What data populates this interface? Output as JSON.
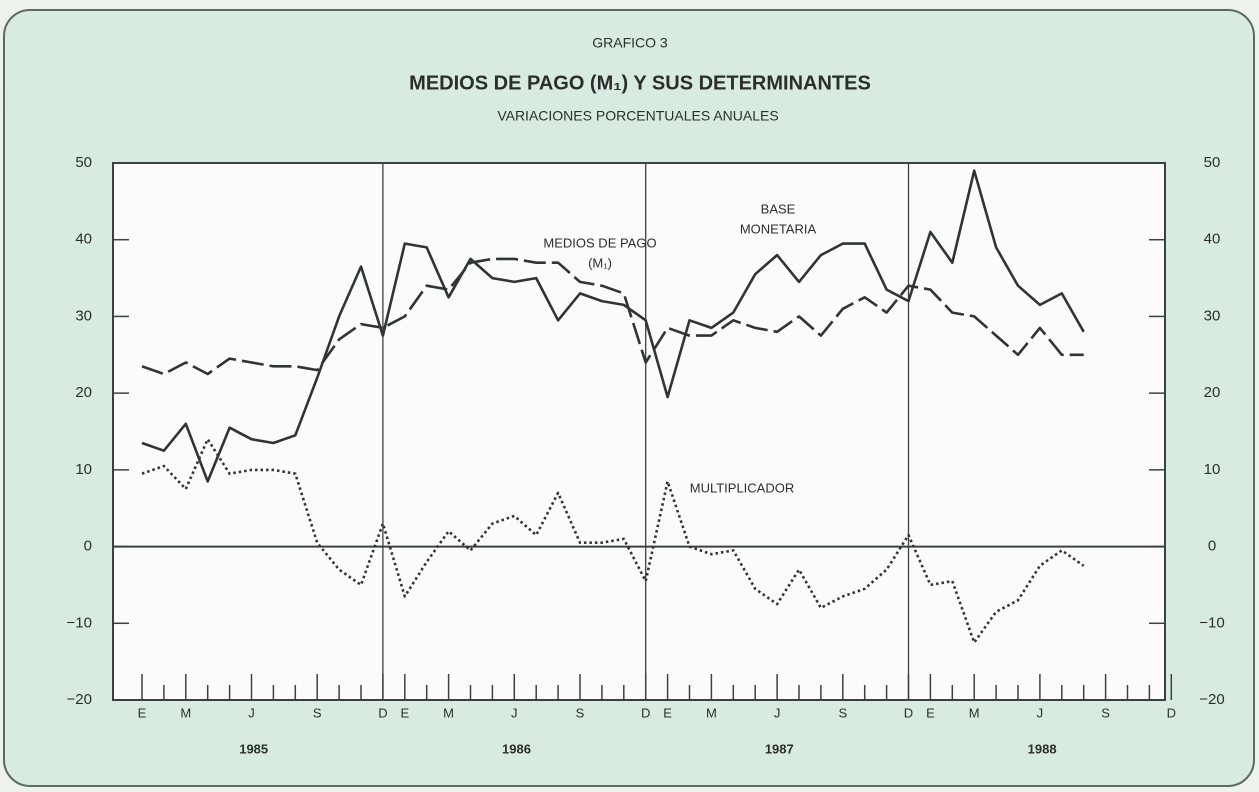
{
  "chart_data": {
    "type": "line",
    "supertitle": "GRAFICO 3",
    "title": "MEDIOS DE PAGO (M₁) Y SUS DETERMINANTES",
    "subtitle": "VARIACIONES PORCENTUALES ANUALES",
    "categories": [
      "E",
      null,
      "M",
      null,
      null,
      "J",
      null,
      null,
      "S",
      null,
      null,
      "D",
      "E",
      null,
      "M",
      null,
      null,
      "J",
      null,
      null,
      "S",
      null,
      null,
      "D",
      "E",
      null,
      "M",
      null,
      null,
      "J",
      null,
      null,
      "S",
      null,
      null,
      "D",
      "E",
      null,
      "M",
      null,
      null,
      "J",
      null,
      null,
      "S",
      null,
      null,
      "D"
    ],
    "year_labels": [
      "1985",
      "1986",
      "1987",
      "1988"
    ],
    "ylim": [
      -20,
      50
    ],
    "yticks": [
      {
        "value": -20,
        "label": "−20"
      },
      {
        "value": -10,
        "label": "−10"
      },
      0,
      10,
      20,
      30,
      40,
      50
    ],
    "y2lim": [
      -20,
      50
    ],
    "y2ticks": [
      {
        "value": -20,
        "label": "−20"
      },
      {
        "value": -10,
        "label": "−10"
      },
      0,
      10,
      20,
      30,
      40,
      50
    ],
    "series": [
      {
        "label_lines": [
          "MEDIOS DE PAGO",
          "(M₁)"
        ],
        "color": "#2f3532",
        "style": "dashed",
        "values": [
          23.5,
          22.5,
          24,
          22.5,
          24.5,
          24,
          23.5,
          23.5,
          23,
          27,
          29,
          28.5,
          30,
          34,
          33.5,
          37,
          37.5,
          37.5,
          37,
          37,
          34.5,
          34,
          33,
          24,
          28.5,
          27.5,
          27.5,
          29.5,
          28.5,
          28,
          30,
          27.5,
          31,
          32.5,
          30.5,
          34,
          33.5,
          30.5,
          30,
          27.5,
          25,
          28.5,
          25,
          25,
          null,
          null,
          null,
          null
        ]
      },
      {
        "label_lines": [
          "BASE",
          "MONETARIA"
        ],
        "color": "#2f3532",
        "style": "solid",
        "values": [
          13.5,
          12.5,
          16,
          8.5,
          15.5,
          14,
          13.5,
          14.5,
          22,
          30,
          36.5,
          27.5,
          39.5,
          39,
          32.5,
          37.5,
          35,
          34.5,
          35,
          29.5,
          33,
          32,
          31.5,
          29.5,
          19.5,
          29.5,
          28.5,
          30.5,
          35.5,
          38,
          34.5,
          38,
          39.5,
          39.5,
          33.5,
          32,
          41,
          37,
          49,
          39,
          34,
          31.5,
          33,
          28,
          null,
          null,
          null,
          null
        ]
      },
      {
        "label_lines": [
          "MULTIPLICADOR"
        ],
        "color": "#2f3532",
        "style": "dotted",
        "values": [
          9.5,
          10.5,
          7.5,
          14,
          9.5,
          10,
          10,
          9.5,
          0.5,
          -3,
          -5,
          3,
          -6.5,
          -2,
          2,
          -0.5,
          3,
          4,
          1.5,
          7,
          0.5,
          0.5,
          1,
          -4.5,
          8.5,
          0,
          -1,
          -0.5,
          -5.5,
          -7.5,
          -3,
          -8,
          -6.5,
          -5.5,
          -3,
          1.5,
          -5,
          -4.5,
          -12.5,
          -8.5,
          -7,
          -2.5,
          -0.5,
          -2.5,
          null,
          null,
          null,
          null
        ]
      }
    ]
  }
}
